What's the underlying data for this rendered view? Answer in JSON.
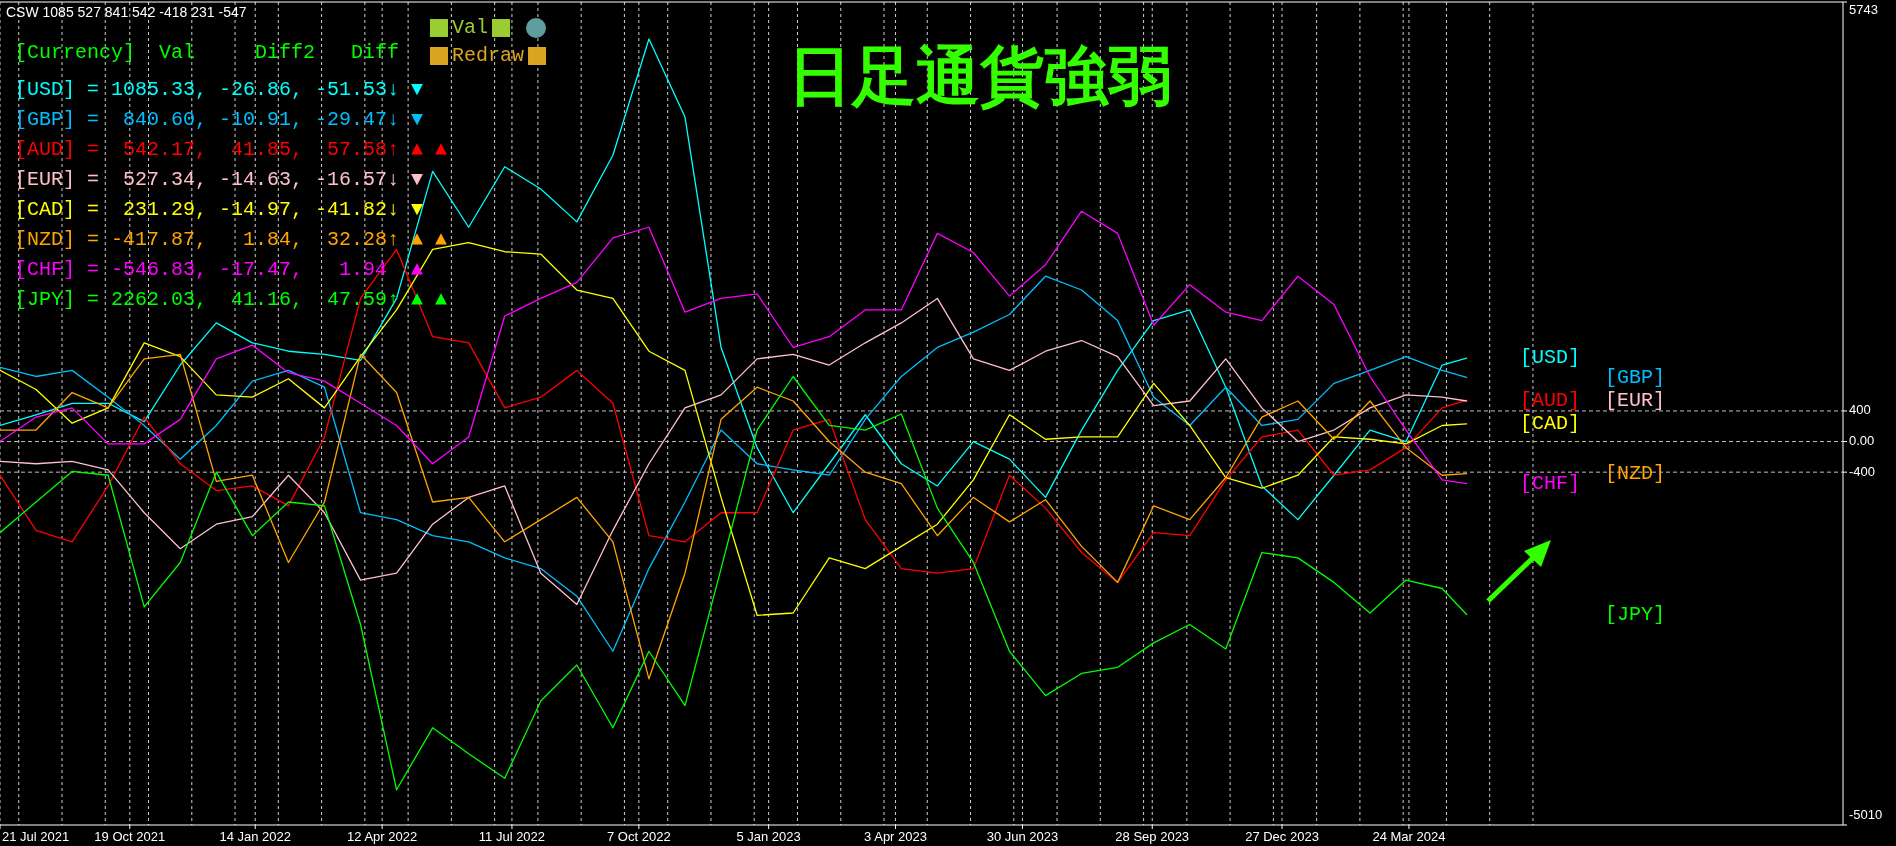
{
  "chart_data": {
    "type": "line",
    "title": "日足通貨強弱",
    "annotations": [
      "CSW 1085 527 841 542 -418 231 -547",
      "[Currency]  Val     Diff2   Diff",
      "[USD] = 1085.33, -26.86, -51.53↓ ▼",
      "[GBP] =  840.60, -10.91, -29.47↓ ▼",
      "[AUD] =  542.17,  41.85,  57.58↑ ▲ ▲",
      "[EUR] =  527.34, -14.63, -16.57↓ ▼",
      "[CAD] =  231.29, -14.97, -41.82↓ ▼",
      "[NZD] = -417.87,   1.84,  32.28↑ ▲ ▲",
      "[CHF] = -546.83, -17.47,   1.94  ▲",
      "[JPY] = 2262.03,  41.16,  47.59↑ ▲ ▲",
      "Val",
      "Redraw"
    ],
    "x": [
      "2021-07-21",
      "2021-08-15",
      "2021-09-09",
      "2021-10-04",
      "2021-10-29",
      "2021-11-23",
      "2021-12-18",
      "2022-01-12",
      "2022-02-06",
      "2022-03-03",
      "2022-03-28",
      "2022-04-22",
      "2022-05-17",
      "2022-06-11",
      "2022-07-06",
      "2022-07-31",
      "2022-08-25",
      "2022-09-19",
      "2022-10-14",
      "2022-11-08",
      "2022-12-03",
      "2022-12-28",
      "2023-01-22",
      "2023-02-16",
      "2023-03-13",
      "2023-04-07",
      "2023-05-02",
      "2023-05-27",
      "2023-06-21",
      "2023-07-16",
      "2023-08-10",
      "2023-09-04",
      "2023-09-29",
      "2023-10-24",
      "2023-11-18",
      "2023-12-13",
      "2024-01-07",
      "2024-02-01",
      "2024-02-26",
      "2024-03-22",
      "2024-04-16",
      "2024-05-03"
    ],
    "series": [
      {
        "name": "[USD]",
        "color": "#00ffff",
        "values": [
          210,
          350,
          500,
          500,
          260,
          1000,
          1550,
          1290,
          1180,
          1140,
          1060,
          1870,
          3530,
          2800,
          3590,
          3300,
          2870,
          3740,
          5260,
          4240,
          1230,
          -80,
          -930,
          -290,
          350,
          -290,
          -580,
          0,
          -230,
          -730,
          150,
          930,
          1580,
          1720,
          710,
          -580,
          -1020,
          -440,
          150,
          0,
          1000,
          1090
        ]
      },
      {
        "name": "[GBP]",
        "color": "#00bfff",
        "values": [
          970,
          850,
          930,
          580,
          210,
          -230,
          210,
          790,
          930,
          710,
          -930,
          -1020,
          -1230,
          -1310,
          -1520,
          -1660,
          -2020,
          -2740,
          -1660,
          -790,
          150,
          -290,
          -370,
          -440,
          290,
          850,
          1230,
          1430,
          1660,
          2160,
          1980,
          1580,
          580,
          210,
          710,
          210,
          290,
          760,
          930,
          1110,
          930,
          840
        ]
      },
      {
        "name": "[AUD]",
        "color": "#ff0000",
        "values": [
          -440,
          -1160,
          -1310,
          -580,
          320,
          -290,
          -640,
          -580,
          -840,
          60,
          1870,
          2510,
          1370,
          1290,
          440,
          580,
          930,
          500,
          -1230,
          -1310,
          -930,
          -930,
          150,
          290,
          -1020,
          -1660,
          -1720,
          -1660,
          -440,
          -870,
          -1450,
          -1840,
          -1190,
          -1230,
          -500,
          60,
          150,
          -440,
          -370,
          -80,
          440,
          540
        ]
      },
      {
        "name": "[EUR]",
        "color": "#ffc0cb",
        "values": [
          -260,
          -290,
          -260,
          -370,
          -930,
          -1400,
          -1080,
          -980,
          -440,
          -930,
          -1810,
          -1720,
          -1080,
          -730,
          -580,
          -1720,
          -2130,
          -1160,
          -290,
          440,
          610,
          1080,
          1140,
          1000,
          1290,
          1550,
          1870,
          1080,
          930,
          1180,
          1320,
          1110,
          470,
          530,
          1080,
          440,
          0,
          150,
          440,
          610,
          580,
          530
        ]
      },
      {
        "name": "[CAD]",
        "color": "#ffff00",
        "values": [
          930,
          680,
          240,
          440,
          1290,
          1110,
          610,
          580,
          820,
          440,
          1110,
          1720,
          2510,
          2600,
          2480,
          2450,
          1980,
          1870,
          1180,
          930,
          -730,
          -2270,
          -2240,
          -1520,
          -1660,
          -1370,
          -1080,
          -500,
          350,
          30,
          60,
          60,
          760,
          210,
          -470,
          -610,
          -440,
          60,
          30,
          -30,
          210,
          230
        ]
      },
      {
        "name": "[NZD]",
        "color": "#ffa500",
        "values": [
          150,
          150,
          640,
          440,
          1080,
          1140,
          -520,
          -440,
          -1580,
          -790,
          1140,
          640,
          -790,
          -730,
          -1310,
          -1020,
          -730,
          -1310,
          -3100,
          -1720,
          290,
          710,
          530,
          0,
          -400,
          -550,
          -1230,
          -730,
          -1050,
          -760,
          -1370,
          -1840,
          -840,
          -1020,
          -470,
          320,
          530,
          30,
          530,
          -80,
          -440,
          -420
        ]
      },
      {
        "name": "[CHF]",
        "color": "#ff00ff",
        "values": [
          0,
          320,
          440,
          -30,
          -30,
          290,
          1080,
          1260,
          900,
          790,
          500,
          210,
          -290,
          60,
          1640,
          1870,
          2080,
          2660,
          2800,
          1690,
          1870,
          1930,
          1230,
          1370,
          1720,
          1720,
          2720,
          2470,
          1900,
          2310,
          3010,
          2720,
          1520,
          2050,
          1690,
          1580,
          2160,
          1790,
          850,
          150,
          -500,
          -550
        ]
      },
      {
        "name": "[JPY]",
        "color": "#00ff00",
        "values": [
          -1190,
          -790,
          -390,
          -440,
          -2160,
          -1580,
          -400,
          -1230,
          -790,
          -840,
          -2390,
          -4550,
          -3740,
          -4080,
          -4400,
          -3390,
          -2920,
          -3740,
          -2740,
          -3450,
          -1660,
          150,
          850,
          210,
          150,
          360,
          -870,
          -1580,
          -2740,
          -3320,
          -3030,
          -2950,
          -2630,
          -2390,
          -2710,
          -1450,
          -1520,
          -1840,
          -2240,
          -1810,
          -1920,
          -2260
        ]
      }
    ],
    "xlim": [
      "2021-07-21",
      "2025-01-19"
    ],
    "xticks": [
      {
        "value": "2021-07-21",
        "label": "21 Jul 2021"
      },
      {
        "value": "2021-10-19",
        "label": "19 Oct 2021"
      },
      {
        "value": "2022-01-14",
        "label": "14 Jan 2022"
      },
      {
        "value": "2022-04-12",
        "label": "12 Apr 2022"
      },
      {
        "value": "2022-07-11",
        "label": "11 Jul 2022"
      },
      {
        "value": "2022-10-07",
        "label": "7 Oct 2022"
      },
      {
        "value": "2023-01-05",
        "label": "5 Jan 2023"
      },
      {
        "value": "2023-04-03",
        "label": "3 Apr 2023"
      },
      {
        "value": "2023-06-30",
        "label": "30 Jun 2023"
      },
      {
        "value": "2023-09-28",
        "label": "28 Sep 2023"
      },
      {
        "value": "2023-12-27",
        "label": "27 Dec 2023"
      },
      {
        "value": "2024-03-24",
        "label": "24 Mar 2024"
      },
      {
        "value": "2021-08-03",
        "label": null
      },
      {
        "value": "2021-09-02",
        "label": null
      },
      {
        "value": "2021-10-02",
        "label": null
      },
      {
        "value": "2021-11-01",
        "label": null
      },
      {
        "value": "2021-12-01",
        "label": null
      },
      {
        "value": "2021-12-31",
        "label": null
      },
      {
        "value": "2022-01-30",
        "label": null
      },
      {
        "value": "2022-03-01",
        "label": null
      },
      {
        "value": "2022-03-31",
        "label": null
      },
      {
        "value": "2022-04-30",
        "label": null
      },
      {
        "value": "2022-05-30",
        "label": null
      },
      {
        "value": "2022-06-29",
        "label": null
      },
      {
        "value": "2022-07-29",
        "label": null
      },
      {
        "value": "2022-08-28",
        "label": null
      },
      {
        "value": "2022-09-27",
        "label": null
      },
      {
        "value": "2022-10-27",
        "label": null
      },
      {
        "value": "2022-11-26",
        "label": null
      },
      {
        "value": "2022-12-26",
        "label": null
      },
      {
        "value": "2023-01-25",
        "label": null
      },
      {
        "value": "2023-02-24",
        "label": null
      },
      {
        "value": "2023-03-26",
        "label": null
      },
      {
        "value": "2023-04-25",
        "label": null
      },
      {
        "value": "2023-05-25",
        "label": null
      },
      {
        "value": "2023-06-24",
        "label": null
      },
      {
        "value": "2023-07-24",
        "label": null
      },
      {
        "value": "2023-08-23",
        "label": null
      },
      {
        "value": "2023-09-22",
        "label": null
      },
      {
        "value": "2023-10-22",
        "label": null
      },
      {
        "value": "2023-11-21",
        "label": null
      },
      {
        "value": "2023-12-21",
        "label": null
      },
      {
        "value": "2024-01-20",
        "label": null
      },
      {
        "value": "2024-02-19",
        "label": null
      },
      {
        "value": "2024-03-20",
        "label": null
      },
      {
        "value": "2024-04-19",
        "label": null
      },
      {
        "value": "2024-05-19",
        "label": null
      },
      {
        "value": "2024-06-18",
        "label": null
      }
    ],
    "ylim": [
      -5010,
      5743
    ],
    "yticks": [
      5743,
      400,
      {
        "value": 0,
        "label": "0.00"
      },
      -400,
      -5010
    ],
    "ref_lines": [
      {
        "axis": "y",
        "value": 400,
        "color": "#c0c0c0",
        "line_style": "dashed"
      },
      {
        "axis": "y",
        "value": 0,
        "color": "#c0c0c0",
        "line_style": "dashed"
      },
      {
        "axis": "y",
        "value": -400,
        "color": "#c0c0c0",
        "line_style": "dashed"
      }
    ],
    "grid": "x"
  }
}
